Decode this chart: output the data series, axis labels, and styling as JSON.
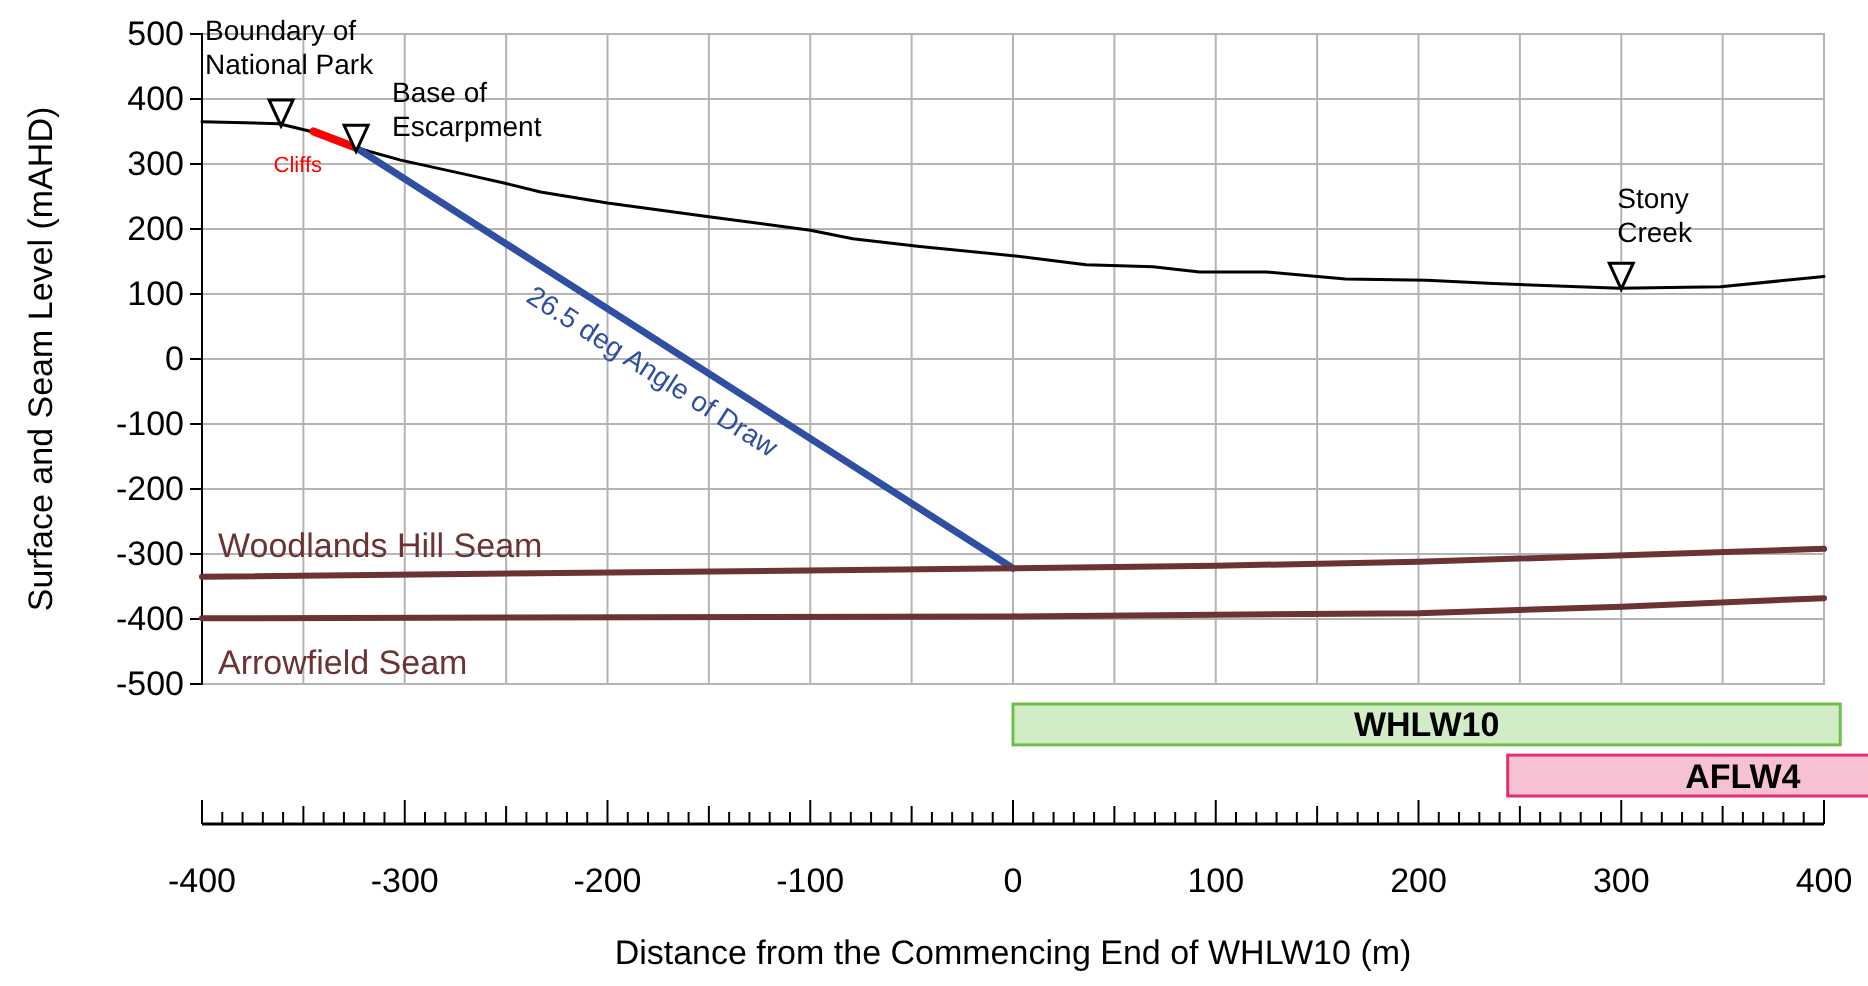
{
  "chart_data": [
    {
      "type": "line",
      "ylabel": "Surface and Seam Level (mAHD)",
      "xlim": [
        -400,
        400
      ],
      "xticks": [
        {
          "value": -400,
          "label": null
        },
        {
          "value": -350,
          "label": null
        },
        {
          "value": -300,
          "label": null
        },
        {
          "value": -250,
          "label": null
        },
        {
          "value": -200,
          "label": null
        },
        {
          "value": -150,
          "label": null
        },
        {
          "value": -100,
          "label": null
        },
        {
          "value": -50,
          "label": null
        },
        {
          "value": 0,
          "label": null
        },
        {
          "value": 50,
          "label": null
        },
        {
          "value": 100,
          "label": null
        },
        {
          "value": 150,
          "label": null
        },
        {
          "value": 200,
          "label": null
        },
        {
          "value": 250,
          "label": null
        },
        {
          "value": 300,
          "label": null
        },
        {
          "value": 350,
          "label": null
        },
        {
          "value": 400,
          "label": null
        }
      ],
      "ylim": [
        -500,
        500
      ],
      "yticks": [
        -500,
        -400,
        -300,
        -200,
        -100,
        0,
        100,
        200,
        300,
        400,
        500
      ],
      "grid": true,
      "tick_labels": "y",
      "series": [
        {
          "color": "#000000",
          "x": [
            -400,
            -362,
            -342,
            -324,
            -302,
            -270,
            -250,
            -233,
            -200,
            -150,
            -100,
            -79,
            -46,
            0,
            36,
            69,
            92,
            125,
            164,
            204,
            237,
            299,
            349,
            400
          ],
          "values": [
            365,
            362,
            347,
            325,
            306,
            284,
            270,
            257,
            240,
            219,
            198,
            185,
            173,
            159,
            145,
            142,
            134,
            134,
            123,
            121,
            116,
            109,
            111,
            127
          ]
        },
        {
          "name": "Cliffs",
          "color": "#ff0000",
          "x": [
            -345,
            -324
          ],
          "values": [
            350,
            325
          ]
        },
        {
          "name": "26.5 deg Angle of Draw",
          "color": "#2f4fa2",
          "x": [
            -324,
            0
          ],
          "values": [
            325,
            -322
          ]
        },
        {
          "name": "Woodlands Hill Seam",
          "color": "#6b3333",
          "x": [
            -400,
            0,
            100,
            200,
            400
          ],
          "values": [
            -335,
            -322,
            -318,
            -312,
            -292
          ]
        },
        {
          "name": "Arrowfield Seam",
          "color": "#6b3333",
          "x": [
            -400,
            0,
            200,
            300,
            400
          ],
          "values": [
            -399,
            -396,
            -391,
            -381,
            -368
          ]
        },
        {
          "type": "scatter",
          "marker": "triangle",
          "color": "#000000",
          "x": [
            -361,
            -324,
            300
          ],
          "values": [
            380,
            341,
            129
          ]
        }
      ],
      "annotations": [
        {
          "text": "Boundary of\nNational Park",
          "x": -361,
          "y": 362
        },
        {
          "text": "Base of\nEscarpment",
          "x": -324,
          "y": 325
        },
        {
          "text": "Stony\nCreek",
          "x": 300,
          "y": 109
        }
      ]
    },
    {
      "type": "bar",
      "orientation": "horizontal",
      "categories": [
        "WHLW10",
        "AFLW4"
      ],
      "base": [
        0,
        244
      ],
      "values": [
        408,
        232
      ],
      "colors": [
        "#6cc04a",
        "#e0316b"
      ],
      "xlim": [
        -400,
        400
      ],
      "xlabel": "Distance from the Commencing End of WHLW10 (m)",
      "tick_labels": "x",
      "xticks": [
        {
          "value": -400,
          "label": "-400"
        },
        {
          "value": -390,
          "label": null
        },
        {
          "value": -380,
          "label": null
        },
        {
          "value": -370,
          "label": null
        },
        {
          "value": -360,
          "label": null
        },
        {
          "value": -350,
          "label": null
        },
        {
          "value": -340,
          "label": null
        },
        {
          "value": -330,
          "label": null
        },
        {
          "value": -320,
          "label": null
        },
        {
          "value": -310,
          "label": null
        },
        {
          "value": -300,
          "label": "-300"
        },
        {
          "value": -290,
          "label": null
        },
        {
          "value": -280,
          "label": null
        },
        {
          "value": -270,
          "label": null
        },
        {
          "value": -260,
          "label": null
        },
        {
          "value": -250,
          "label": null
        },
        {
          "value": -240,
          "label": null
        },
        {
          "value": -230,
          "label": null
        },
        {
          "value": -220,
          "label": null
        },
        {
          "value": -210,
          "label": null
        },
        {
          "value": -200,
          "label": "-200"
        },
        {
          "value": -190,
          "label": null
        },
        {
          "value": -180,
          "label": null
        },
        {
          "value": -170,
          "label": null
        },
        {
          "value": -160,
          "label": null
        },
        {
          "value": -150,
          "label": null
        },
        {
          "value": -140,
          "label": null
        },
        {
          "value": -130,
          "label": null
        },
        {
          "value": -120,
          "label": null
        },
        {
          "value": -110,
          "label": null
        },
        {
          "value": -100,
          "label": "-100"
        },
        {
          "value": -90,
          "label": null
        },
        {
          "value": -80,
          "label": null
        },
        {
          "value": -70,
          "label": null
        },
        {
          "value": -60,
          "label": null
        },
        {
          "value": -50,
          "label": null
        },
        {
          "value": -40,
          "label": null
        },
        {
          "value": -30,
          "label": null
        },
        {
          "value": -20,
          "label": null
        },
        {
          "value": -10,
          "label": null
        },
        {
          "value": 0,
          "label": "0"
        },
        {
          "value": 10,
          "label": null
        },
        {
          "value": 20,
          "label": null
        },
        {
          "value": 30,
          "label": null
        },
        {
          "value": 40,
          "label": null
        },
        {
          "value": 50,
          "label": null
        },
        {
          "value": 60,
          "label": null
        },
        {
          "value": 70,
          "label": null
        },
        {
          "value": 80,
          "label": null
        },
        {
          "value": 90,
          "label": null
        },
        {
          "value": 100,
          "label": "100"
        },
        {
          "value": 110,
          "label": null
        },
        {
          "value": 120,
          "label": null
        },
        {
          "value": 130,
          "label": null
        },
        {
          "value": 140,
          "label": null
        },
        {
          "value": 150,
          "label": null
        },
        {
          "value": 160,
          "label": null
        },
        {
          "value": 170,
          "label": null
        },
        {
          "value": 180,
          "label": null
        },
        {
          "value": 190,
          "label": null
        },
        {
          "value": 200,
          "label": "200"
        },
        {
          "value": 210,
          "label": null
        },
        {
          "value": 220,
          "label": null
        },
        {
          "value": 230,
          "label": null
        },
        {
          "value": 240,
          "label": null
        },
        {
          "value": 250,
          "label": null
        },
        {
          "value": 260,
          "label": null
        },
        {
          "value": 270,
          "label": null
        },
        {
          "value": 280,
          "label": null
        },
        {
          "value": 290,
          "label": null
        },
        {
          "value": 300,
          "label": "300"
        },
        {
          "value": 310,
          "label": null
        },
        {
          "value": 320,
          "label": null
        },
        {
          "value": 330,
          "label": null
        },
        {
          "value": 340,
          "label": null
        },
        {
          "value": 350,
          "label": null
        },
        {
          "value": 360,
          "label": null
        },
        {
          "value": 370,
          "label": null
        },
        {
          "value": 380,
          "label": null
        },
        {
          "value": 390,
          "label": null
        },
        {
          "value": 400,
          "label": "400"
        }
      ]
    }
  ]
}
